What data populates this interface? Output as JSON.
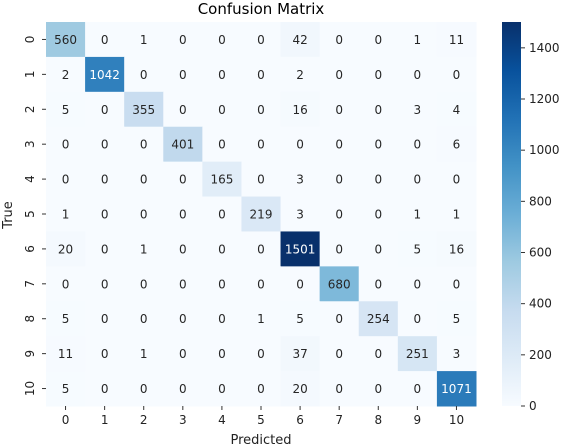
{
  "chart_data": {
    "type": "heatmap",
    "title": "Confusion Matrix",
    "xlabel": "Predicted",
    "ylabel": "True",
    "x_ticks": [
      "0",
      "1",
      "2",
      "3",
      "4",
      "5",
      "6",
      "7",
      "8",
      "9",
      "10"
    ],
    "y_ticks": [
      "0",
      "1",
      "2",
      "3",
      "4",
      "5",
      "6",
      "7",
      "8",
      "9",
      "10"
    ],
    "matrix": [
      [
        560,
        0,
        1,
        0,
        0,
        0,
        42,
        0,
        0,
        1,
        11
      ],
      [
        2,
        1042,
        0,
        0,
        0,
        0,
        2,
        0,
        0,
        0,
        0
      ],
      [
        5,
        0,
        355,
        0,
        0,
        0,
        16,
        0,
        0,
        3,
        4
      ],
      [
        0,
        0,
        0,
        401,
        0,
        0,
        0,
        0,
        0,
        0,
        6
      ],
      [
        0,
        0,
        0,
        0,
        165,
        0,
        3,
        0,
        0,
        0,
        0
      ],
      [
        1,
        0,
        0,
        0,
        0,
        219,
        3,
        0,
        0,
        1,
        1
      ],
      [
        20,
        0,
        1,
        0,
        0,
        0,
        1501,
        0,
        0,
        5,
        16
      ],
      [
        0,
        0,
        0,
        0,
        0,
        0,
        0,
        680,
        0,
        0,
        0
      ],
      [
        5,
        0,
        0,
        0,
        0,
        1,
        5,
        0,
        254,
        0,
        5
      ],
      [
        11,
        0,
        1,
        0,
        0,
        0,
        37,
        0,
        0,
        251,
        3
      ],
      [
        5,
        0,
        0,
        0,
        0,
        0,
        20,
        0,
        0,
        0,
        1071
      ]
    ],
    "colorbar": {
      "min": 0,
      "max": 1501,
      "ticks": [
        0,
        200,
        400,
        600,
        800,
        1000,
        1200,
        1400
      ],
      "colormap": "Blues"
    },
    "grid": false
  }
}
